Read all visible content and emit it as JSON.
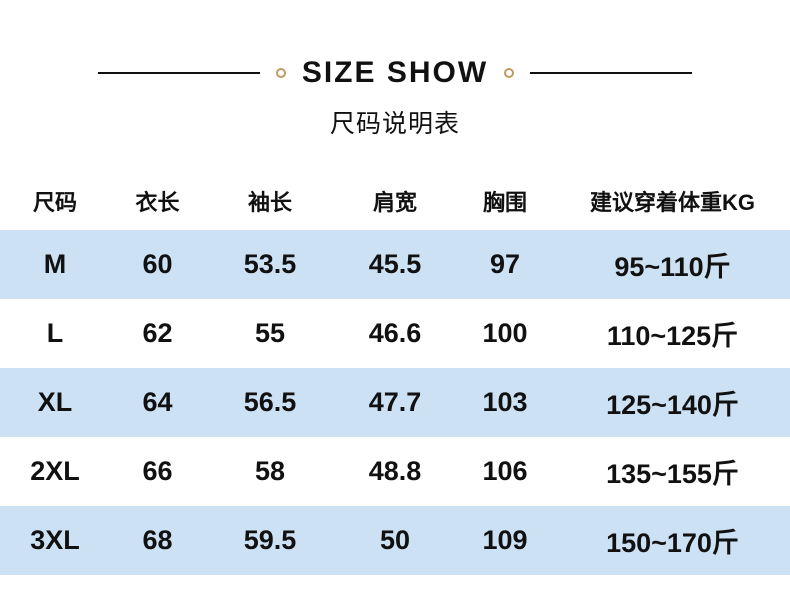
{
  "header": {
    "title": "SIZE SHOW",
    "subtitle": "尺码说明表"
  },
  "table": {
    "columns": [
      "尺码",
      "衣长",
      "袖长",
      "肩宽",
      "胸围",
      "建议穿着体重KG"
    ],
    "rows": [
      [
        "M",
        "60",
        "53.5",
        "45.5",
        "97",
        "95~110斤"
      ],
      [
        "L",
        "62",
        "55",
        "46.6",
        "100",
        "110~125斤"
      ],
      [
        "XL",
        "64",
        "56.5",
        "47.7",
        "103",
        "125~140斤"
      ],
      [
        "2XL",
        "66",
        "58",
        "48.8",
        "106",
        "135~155斤"
      ],
      [
        "3XL",
        "68",
        "59.5",
        "50",
        "109",
        "150~170斤"
      ]
    ]
  },
  "chart_data": {
    "type": "table",
    "title": "SIZE SHOW 尺码说明表",
    "columns": [
      "尺码",
      "衣长",
      "袖长",
      "肩宽",
      "胸围",
      "建议穿着体重KG"
    ],
    "rows": [
      [
        "M",
        60,
        53.5,
        45.5,
        97,
        "95~110斤"
      ],
      [
        "L",
        62,
        55,
        46.6,
        100,
        "110~125斤"
      ],
      [
        "XL",
        64,
        56.5,
        47.7,
        103,
        "125~140斤"
      ],
      [
        "2XL",
        66,
        58,
        48.8,
        106,
        "135~155斤"
      ],
      [
        "3XL",
        68,
        59.5,
        50,
        109,
        "150~170斤"
      ]
    ],
    "layout": "alternating row stripes, stripe on rows 1/3/5"
  },
  "colors": {
    "row_stripe": "#cde1f5",
    "accent_ring": "#bf9b5f",
    "text": "#111111",
    "background": "#ffffff"
  }
}
